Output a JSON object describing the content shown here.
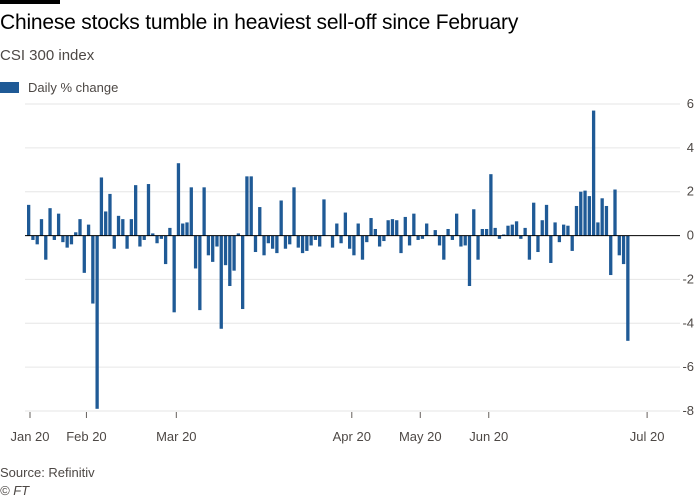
{
  "title": "Chinese stocks tumble in heaviest sell-off since February",
  "subtitle": "CSI 300 index",
  "legend_label": "Daily % change",
  "source": "Source: Refinitiv",
  "credit": "© FT",
  "colors": {
    "bar": "#1f5a96",
    "grid": "#e6e6e6",
    "zero_line": "#000000"
  },
  "chart_data": {
    "type": "bar",
    "grid": true,
    "ylim": [
      -8,
      6
    ],
    "yticks": [
      6,
      4,
      2,
      0,
      -2,
      -4,
      -6,
      -8
    ],
    "xtick_labels": [
      {
        "label": "Jan 20",
        "after_index": -1
      },
      {
        "label": "Feb 20",
        "after_index": 13
      },
      {
        "label": "Mar 20",
        "after_index": 34
      },
      {
        "label": "Apr 20",
        "after_index": 75
      },
      {
        "label": "May 20",
        "after_index": 91
      },
      {
        "label": "Jun 20",
        "after_index": 107
      },
      {
        "label": "Jul 20",
        "after_index": 144
      }
    ],
    "series": [
      {
        "values": [
          1.4,
          -0.2,
          -0.4,
          0.75,
          -1.1,
          1.25,
          -0.2,
          1.0,
          -0.3,
          -0.55,
          -0.4,
          0.15,
          0.75,
          -1.7,
          0.5,
          -3.1,
          -7.9,
          2.65,
          1.1,
          1.9,
          -0.6,
          0.9,
          0.75,
          -0.6,
          0.75,
          2.3,
          -0.5,
          -0.2,
          2.35,
          0.1,
          -0.35,
          -0.15,
          -1.3,
          0.35,
          -3.5,
          3.3,
          0.55,
          0.6,
          2.2,
          -1.5,
          -3.4,
          2.2,
          -0.9,
          -1.2,
          -0.5,
          -4.25,
          -1.35,
          -2.3,
          -1.6,
          0.1,
          -3.35,
          2.7,
          2.7,
          -0.75,
          1.3,
          -0.9,
          -0.35,
          -0.6,
          -0.8,
          1.6,
          -0.6,
          -0.4,
          2.2,
          -0.55,
          -0.8,
          -0.7,
          -0.45,
          -0.2,
          -0.5,
          1.65,
          0.0,
          -0.55,
          0.55,
          -0.35,
          1.05,
          -0.6,
          -0.9,
          0.55,
          -1.1,
          -0.3,
          0.8,
          0.3,
          -0.5,
          -0.25,
          0.7,
          0.75,
          0.7,
          -0.8,
          0.85,
          -0.45,
          1.0,
          -0.2,
          -0.15,
          0.55,
          0.0,
          0.25,
          -0.45,
          -1.1,
          0.3,
          -0.2,
          1.0,
          -0.5,
          -0.45,
          -2.3,
          1.2,
          -1.1,
          0.3,
          0.3,
          2.8,
          0.35,
          -0.15,
          0.05,
          0.45,
          0.5,
          0.65,
          -0.15,
          0.35,
          -1.1,
          1.5,
          -0.75,
          0.7,
          1.4,
          -1.25,
          0.6,
          -0.3,
          0.5,
          0.45,
          -0.7,
          1.35,
          2.0,
          2.05,
          1.8,
          5.7,
          0.6,
          1.7,
          1.35,
          -1.8,
          2.1,
          -0.9,
          -1.3,
          -4.8
        ]
      }
    ]
  }
}
